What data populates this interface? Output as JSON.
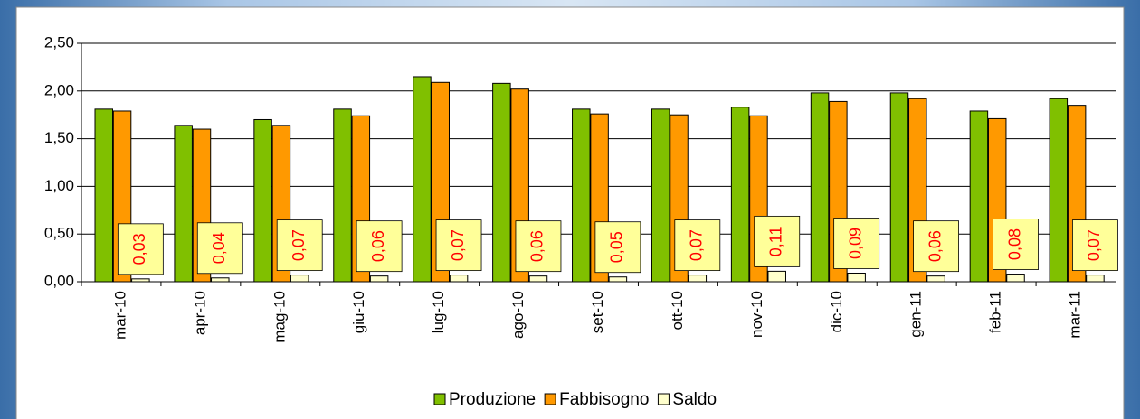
{
  "chart_data": {
    "type": "bar",
    "categories": [
      "mar-10",
      "apr-10",
      "mag-10",
      "giu-10",
      "lug-10",
      "ago-10",
      "set-10",
      "ott-10",
      "nov-10",
      "dic-10",
      "gen-11",
      "feb-11",
      "mar-11"
    ],
    "series": [
      {
        "name": "Produzione",
        "color": "#80c000",
        "values": [
          1.81,
          1.64,
          1.7,
          1.81,
          2.15,
          2.08,
          1.81,
          1.81,
          1.83,
          1.98,
          1.98,
          1.79,
          1.92
        ]
      },
      {
        "name": "Fabbisogno",
        "color": "#ff9900",
        "values": [
          1.79,
          1.6,
          1.64,
          1.74,
          2.09,
          2.02,
          1.76,
          1.75,
          1.74,
          1.89,
          1.92,
          1.71,
          1.85
        ]
      },
      {
        "name": "Saldo",
        "color": "#ffffcc",
        "values": [
          0.03,
          0.04,
          0.07,
          0.06,
          0.07,
          0.06,
          0.05,
          0.07,
          0.11,
          0.09,
          0.06,
          0.08,
          0.07
        ],
        "value_labels": [
          "0,03",
          "0,04",
          "0,07",
          "0,06",
          "0,07",
          "0,06",
          "0,05",
          "0,07",
          "0,11",
          "0,09",
          "0,06",
          "0,08",
          "0,07"
        ]
      }
    ],
    "ylim": [
      0,
      2.5
    ],
    "yticks": [
      {
        "value": 0,
        "label": "0,00"
      },
      {
        "value": 0.5,
        "label": "0,50"
      },
      {
        "value": 1,
        "label": "1,00"
      },
      {
        "value": 1.5,
        "label": "1,50"
      },
      {
        "value": 2,
        "label": "2,00"
      },
      {
        "value": 2.5,
        "label": "2,50"
      }
    ],
    "grid": true,
    "legend": "bottom"
  }
}
